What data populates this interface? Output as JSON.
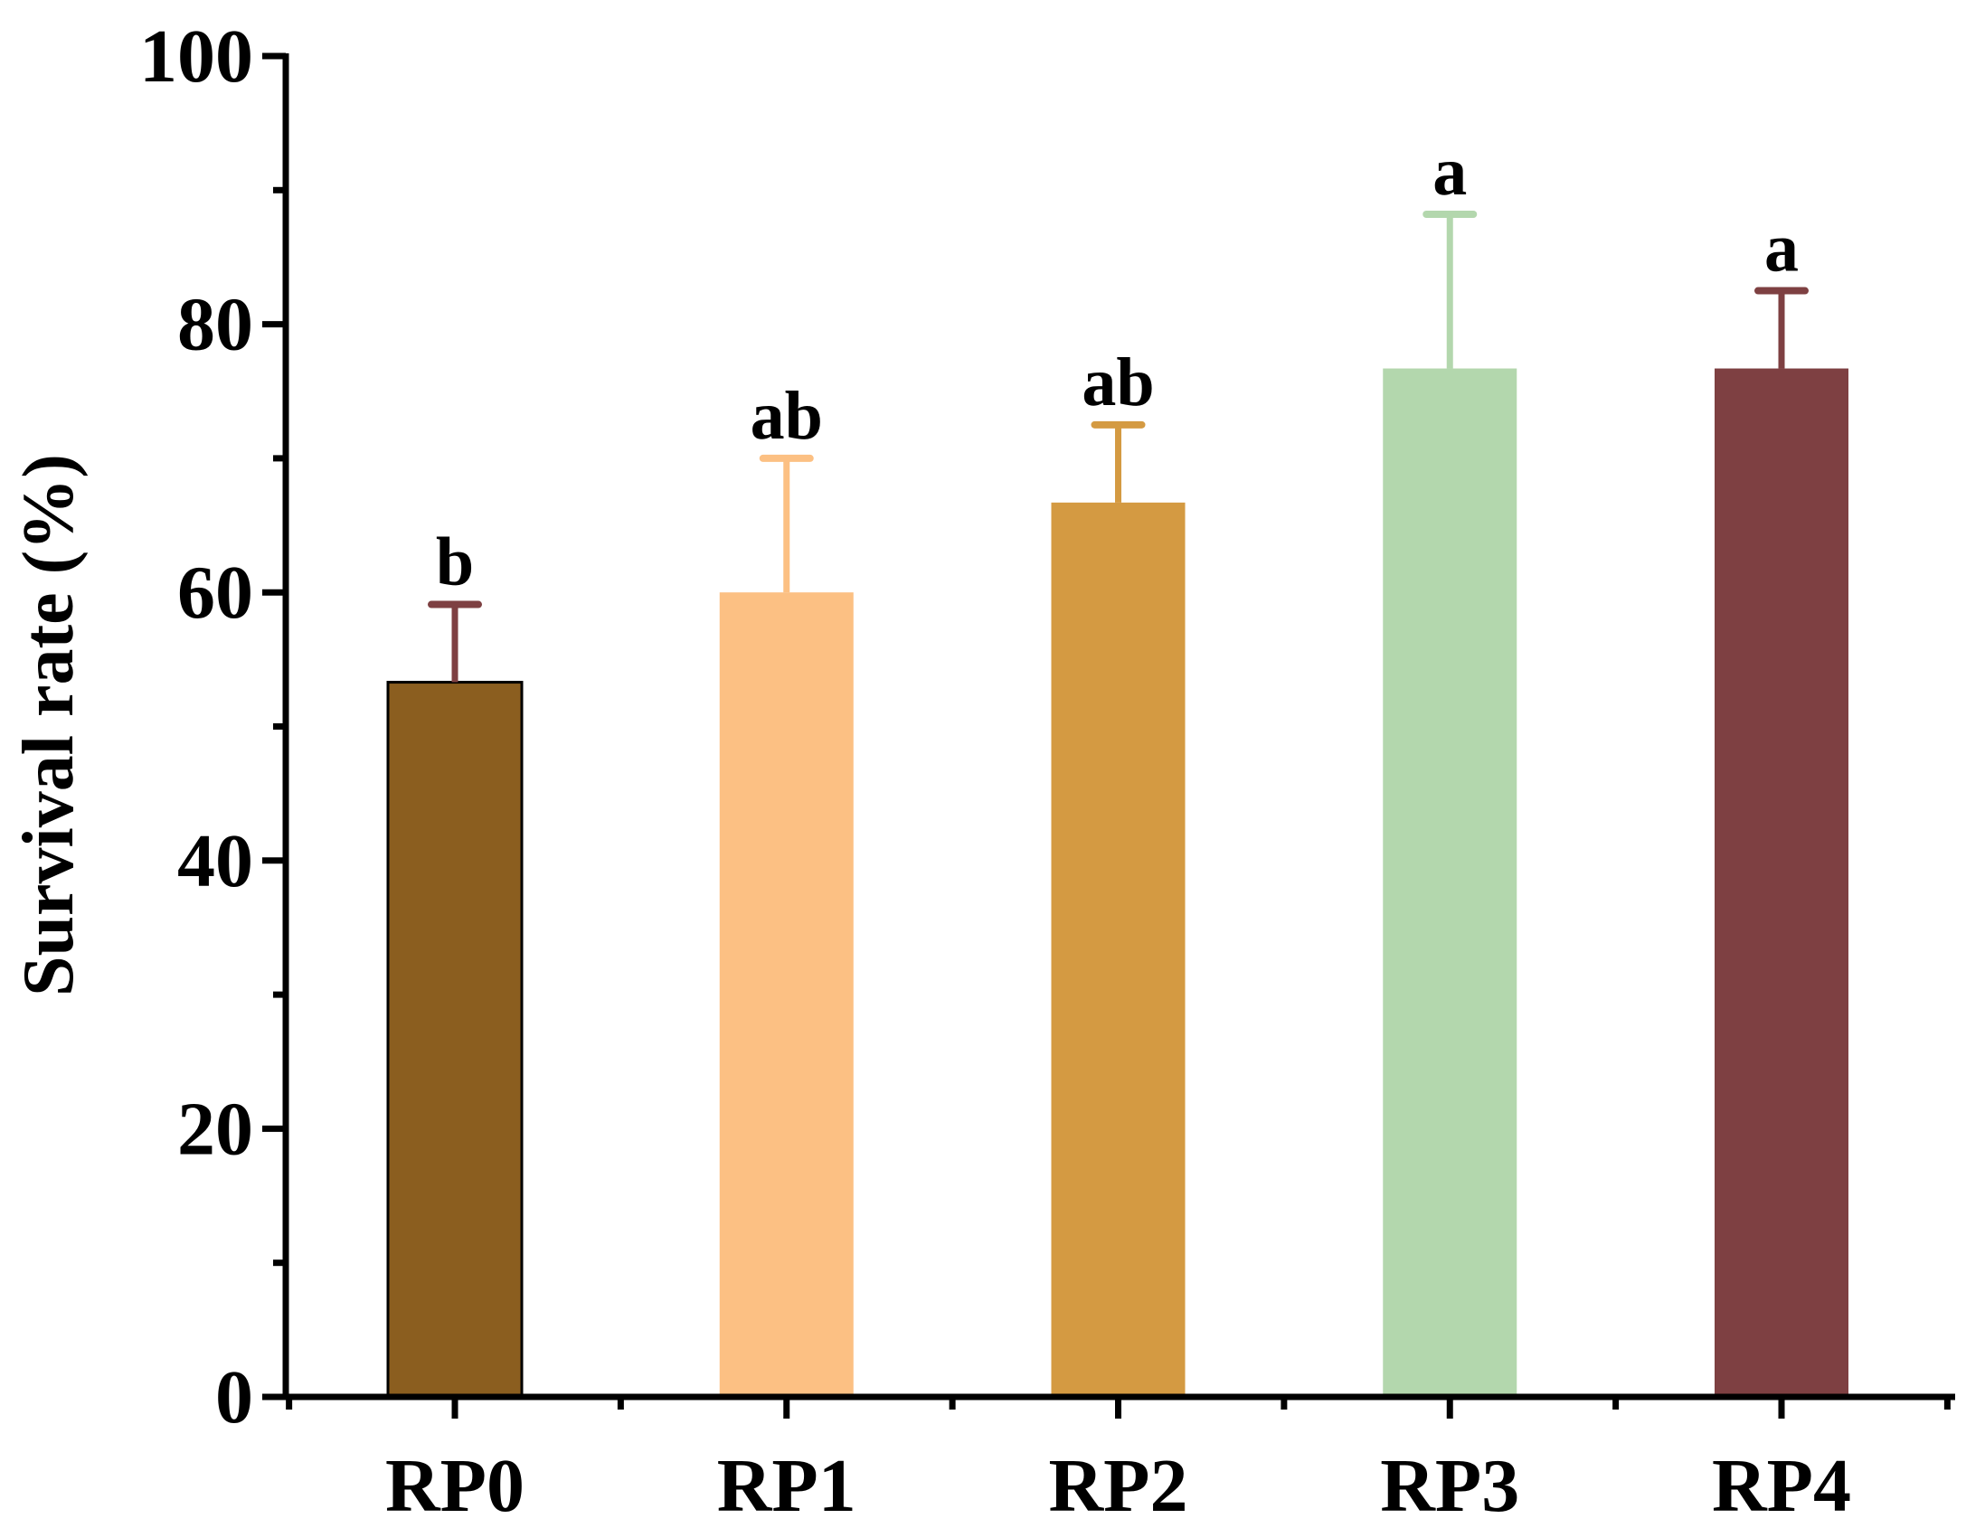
{
  "chart_data": {
    "type": "bar",
    "title": "",
    "xlabel": "",
    "ylabel": "Survival rate (%)",
    "ylim": [
      0,
      100
    ],
    "yticks": [
      0,
      20,
      40,
      60,
      80,
      100
    ],
    "grid": false,
    "categories": [
      "RP0",
      "RP1",
      "RP2",
      "RP3",
      "RP4"
    ],
    "values": [
      53.3,
      60.0,
      66.7,
      76.7,
      76.7
    ],
    "errors": [
      5.8,
      10.0,
      5.8,
      11.5,
      5.8
    ],
    "significance": [
      "b",
      "ab",
      "ab",
      "a",
      "a"
    ],
    "colors": [
      "#8B5E1F",
      "#FCC083",
      "#D49A42",
      "#B3D7AD",
      "#7E4042"
    ],
    "error_colors": [
      "#7E4042",
      "#FCC083",
      "#D49A42",
      "#B3D7AD",
      "#7E4042"
    ]
  }
}
